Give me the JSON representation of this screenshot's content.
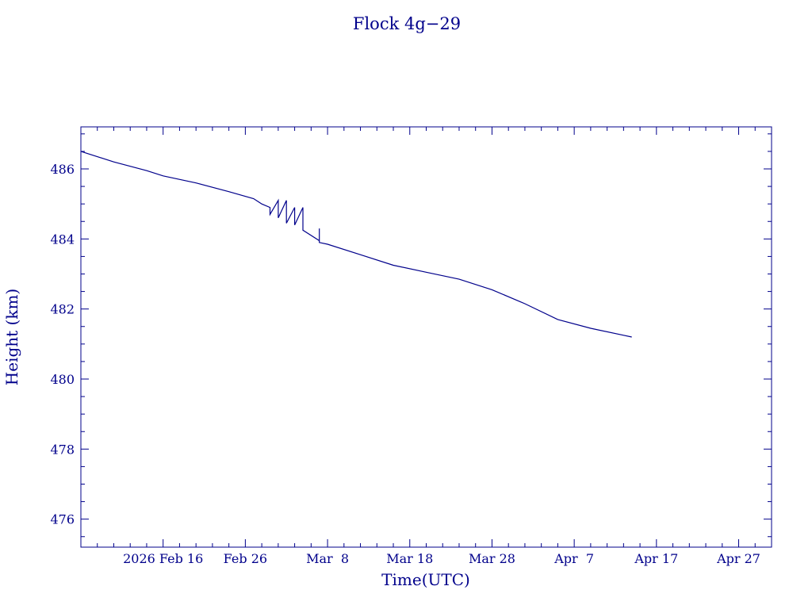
{
  "colors": {
    "ink": "#00008b",
    "background": "#ffffff"
  },
  "chart_data": {
    "type": "line",
    "title": "Flock 4g−29",
    "xlabel": "Time(UTC)",
    "ylabel": "Height (km)",
    "ylim": [
      475.2,
      487.2
    ],
    "xlim": [
      "2026-02-06",
      "2026-05-01"
    ],
    "x_tick_labels": [
      "2026 Feb 16",
      "Feb 26",
      "Mar  8",
      "Mar 18",
      "Mar 28",
      "Apr  7",
      "Apr 17",
      "Apr 27"
    ],
    "x_tick_dates": [
      "2026-02-16",
      "2026-02-26",
      "2026-03-08",
      "2026-03-18",
      "2026-03-28",
      "2026-04-07",
      "2026-04-17",
      "2026-04-27"
    ],
    "y_tick_labels": [
      "476",
      "478",
      "480",
      "482",
      "484",
      "486"
    ],
    "y_tick_values": [
      476,
      478,
      480,
      482,
      484,
      486
    ],
    "grid": false,
    "series": [
      {
        "x": [
          "2026-02-06",
          "2026-02-10",
          "2026-02-14",
          "2026-02-16",
          "2026-02-20",
          "2026-02-24",
          "2026-02-27",
          "2026-02-28",
          "2026-03-01",
          "2026-03-01",
          "2026-03-02",
          "2026-03-02",
          "2026-03-03",
          "2026-03-03",
          "2026-03-03",
          "2026-03-03",
          "2026-03-04",
          "2026-03-04",
          "2026-03-05",
          "2026-03-05",
          "2026-03-05",
          "2026-03-07",
          "2026-03-07",
          "2026-03-07",
          "2026-03-08",
          "2026-03-12",
          "2026-03-16",
          "2026-03-20",
          "2026-03-24",
          "2026-03-28",
          "2026-04-01",
          "2026-04-05",
          "2026-04-09",
          "2026-04-13",
          "2026-04-14"
        ],
        "y": [
          486.5,
          486.2,
          485.95,
          485.8,
          485.6,
          485.35,
          485.15,
          485.0,
          484.9,
          484.7,
          485.1,
          484.6,
          485.1,
          484.5,
          484.9,
          484.45,
          484.9,
          484.4,
          484.9,
          484.3,
          484.25,
          483.95,
          484.3,
          483.9,
          483.85,
          483.55,
          483.25,
          483.05,
          482.85,
          482.55,
          482.15,
          481.7,
          481.45,
          481.25,
          481.2
        ]
      }
    ]
  }
}
